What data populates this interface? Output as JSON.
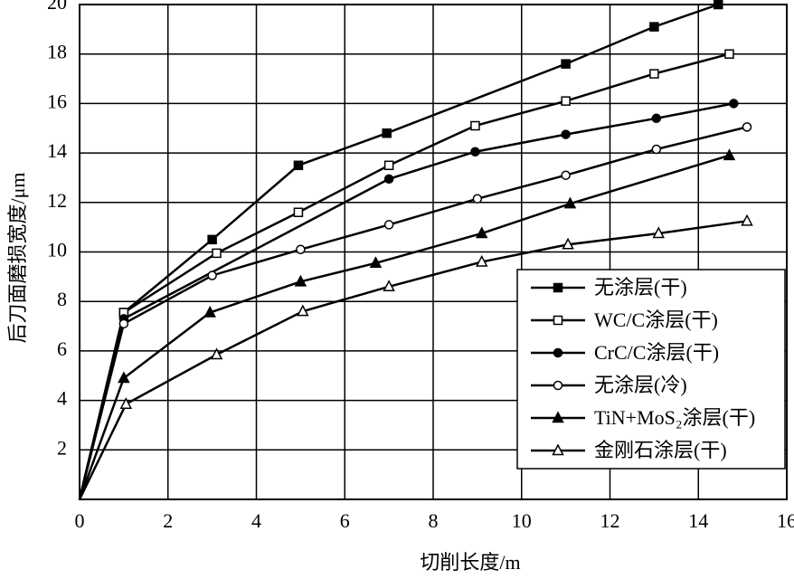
{
  "chart_data": {
    "type": "line",
    "x_label": "切削长度/m",
    "y_label": "后刀面磨损宽度/μm",
    "xlim": [
      0,
      16
    ],
    "xticks": [
      0,
      2,
      4,
      6,
      8,
      10,
      12,
      14,
      16
    ],
    "ylim": [
      0,
      20
    ],
    "yticks": [
      2,
      4,
      6,
      8,
      10,
      12,
      14,
      16,
      18,
      20
    ],
    "grid": true,
    "legend": "lower right",
    "series": [
      {
        "name": "无涂层(干)",
        "color": "#000000",
        "marker": "square-filled",
        "x": [
          0,
          1,
          3,
          4.95,
          6.95,
          11,
          13,
          14.45
        ],
        "values": [
          0,
          7.55,
          10.5,
          13.5,
          14.8,
          17.6,
          19.1,
          20
        ]
      },
      {
        "name": "WC/C涂层(干)",
        "color": "#000000",
        "marker": "square-open",
        "x": [
          0,
          1,
          3.1,
          4.95,
          7,
          8.95,
          11,
          13,
          14.7
        ],
        "values": [
          0,
          7.55,
          9.95,
          11.6,
          13.5,
          15.1,
          16.1,
          17.2,
          18
        ]
      },
      {
        "name": "CrC/C涂层(干)",
        "color": "#000000",
        "marker": "circle-filled",
        "x": [
          0,
          1,
          7,
          8.95,
          11,
          13.05,
          14.8
        ],
        "values": [
          0,
          7.3,
          12.95,
          14.05,
          14.75,
          15.4,
          16
        ]
      },
      {
        "name": "无涂层(冷)",
        "color": "#000000",
        "marker": "circle-open",
        "x": [
          0,
          1,
          3,
          5,
          7,
          9,
          11,
          13.05,
          15.1
        ],
        "values": [
          0,
          7.1,
          9.05,
          10.1,
          11.1,
          12.15,
          13.1,
          14.15,
          15.05
        ]
      },
      {
        "name": "TiN+MoS₂涂层(干)",
        "color": "#000000",
        "marker": "triangle-filled",
        "x": [
          0,
          1,
          2.95,
          5,
          6.7,
          9.1,
          11.1,
          14.7
        ],
        "values": [
          0,
          4.9,
          7.55,
          8.8,
          9.55,
          10.75,
          11.95,
          13.9
        ]
      },
      {
        "name": "金刚石涂层(干)",
        "color": "#000000",
        "marker": "triangle-open",
        "x": [
          0,
          1.05,
          3.1,
          5.05,
          7,
          9.1,
          11.05,
          13.1,
          15.1
        ],
        "values": [
          0,
          3.85,
          5.85,
          7.6,
          8.6,
          9.6,
          10.3,
          10.75,
          11.25
        ]
      }
    ]
  }
}
